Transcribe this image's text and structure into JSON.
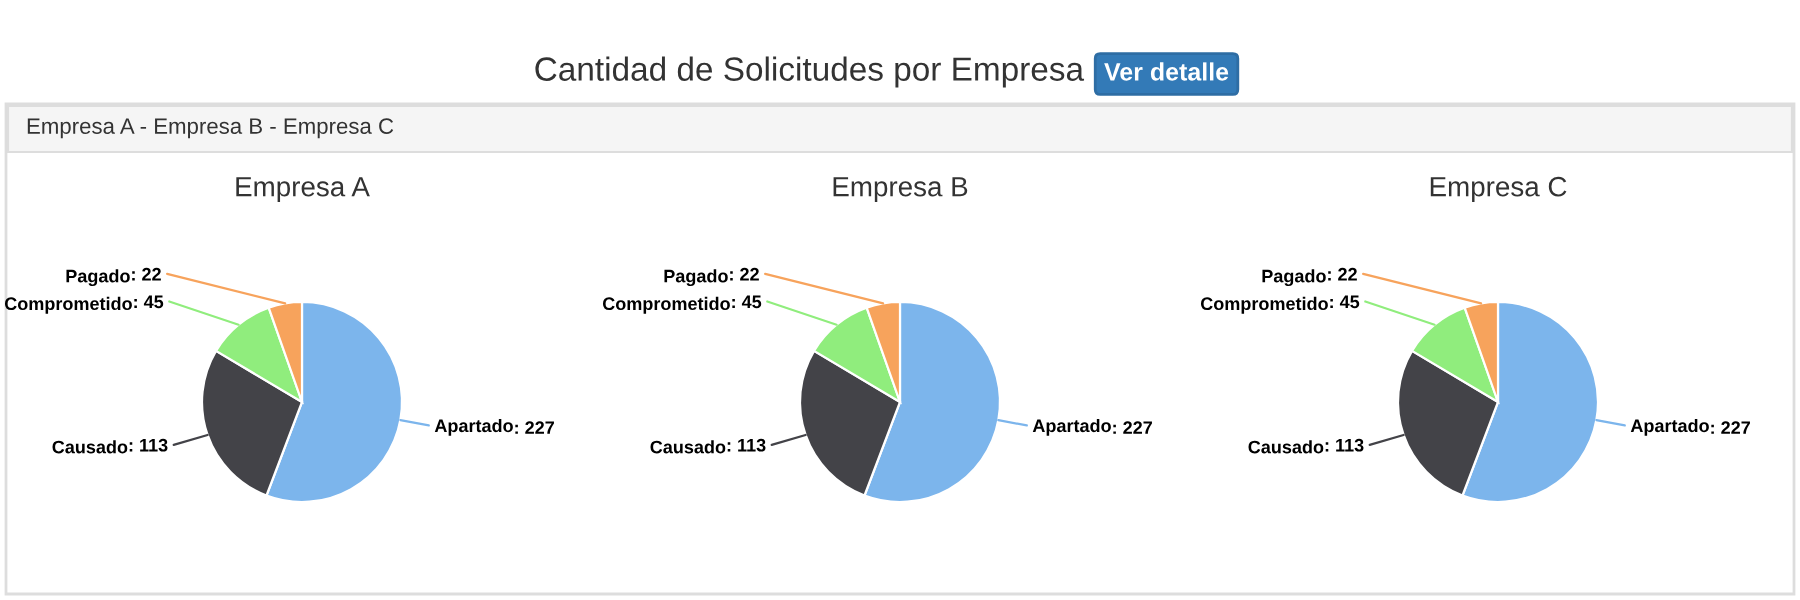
{
  "chart_data": [
    {
      "type": "other",
      "title": "Cantidad de Solicitudes por Empresa",
      "annotations": [
        "Ver detalle",
        "Empresa A - Empresa B - Empresa C"
      ]
    },
    {
      "type": "pie",
      "title": "Empresa A",
      "categories": [
        "Apartado",
        "Causado",
        "Comprometido",
        "Pagado"
      ],
      "values": [
        227,
        113,
        45,
        22
      ],
      "colors": [
        "#7cb5ec",
        "#434348",
        "#90ed7d",
        "#f7a35c"
      ],
      "value_labels": [
        ": 227",
        ": 113",
        ": 45",
        ": 22"
      ]
    },
    {
      "type": "pie",
      "title": "Empresa B",
      "categories": [
        "Apartado",
        "Causado",
        "Comprometido",
        "Pagado"
      ],
      "values": [
        227,
        113,
        45,
        22
      ],
      "colors": [
        "#7cb5ec",
        "#434348",
        "#90ed7d",
        "#f7a35c"
      ],
      "value_labels": [
        ": 227",
        ": 113",
        ": 45",
        ": 22"
      ]
    },
    {
      "type": "pie",
      "title": "Empresa C",
      "categories": [
        "Apartado",
        "Causado",
        "Comprometido",
        "Pagado"
      ],
      "values": [
        227,
        113,
        45,
        22
      ],
      "colors": [
        "#7cb5ec",
        "#434348",
        "#90ed7d",
        "#f7a35c"
      ],
      "value_labels": [
        ": 227",
        ": 113",
        ": 45",
        ": 22"
      ]
    }
  ]
}
